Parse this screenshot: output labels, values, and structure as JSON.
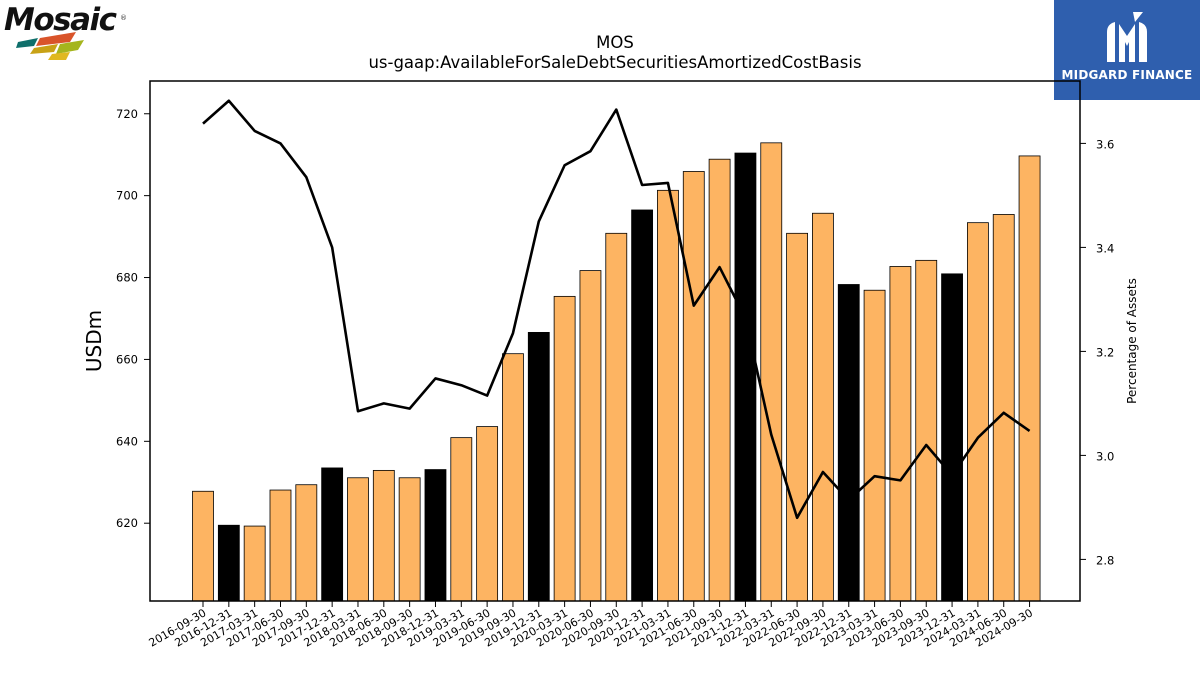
{
  "branding": {
    "company_logo_text": "Mosaic",
    "company_logo_mark": "®",
    "partner_name": "MIDGARD FINANCE",
    "partner_icon": "midgard-logo-icon",
    "partner_bg": "#2f5fae"
  },
  "chart_data": {
    "type": "bar",
    "title": "MOS",
    "subtitle": "us-gaap:AvailableForSaleDebtSecuritiesAmortizedCostBasis",
    "ylabel": "USDm",
    "y2label": "Percentage of Assets",
    "ylim": [
      601,
      728
    ],
    "y2lim": [
      2.72,
      3.72
    ],
    "yticks": [
      620,
      640,
      660,
      680,
      700,
      720
    ],
    "y2ticks": [
      2.8,
      3.0,
      3.2,
      3.4,
      3.6
    ],
    "grid": false,
    "legend": "none",
    "categories": [
      "2016-09-30",
      "2016-12-31",
      "2017-03-31",
      "2017-06-30",
      "2017-09-30",
      "2017-12-31",
      "2018-03-31",
      "2018-06-30",
      "2018-09-30",
      "2018-12-31",
      "2019-03-31",
      "2019-06-30",
      "2019-09-30",
      "2019-12-31",
      "2020-03-31",
      "2020-06-30",
      "2020-09-30",
      "2020-12-31",
      "2021-03-31",
      "2021-06-30",
      "2021-09-30",
      "2021-12-31",
      "2022-03-31",
      "2022-06-30",
      "2022-09-30",
      "2022-12-31",
      "2023-03-31",
      "2023-06-30",
      "2023-09-30",
      "2023-12-31",
      "2024-03-31",
      "2024-06-30",
      "2024-09-30"
    ],
    "series": [
      {
        "kind": "bar",
        "axis": "left",
        "values": [
          627.8,
          619.5,
          619.3,
          628.1,
          629.4,
          633.5,
          631.1,
          632.9,
          631.1,
          633.1,
          640.9,
          643.6,
          661.4,
          666.6,
          675.4,
          681.7,
          690.8,
          696.5,
          701.3,
          705.9,
          708.9,
          710.4,
          712.9,
          690.8,
          695.7,
          678.3,
          676.9,
          682.7,
          684.2,
          680.9,
          693.4,
          695.4,
          709.7
        ],
        "colors_per_bar": [
          "#fdb462",
          "#000000",
          "#fdb462",
          "#fdb462",
          "#fdb462",
          "#000000",
          "#fdb462",
          "#fdb462",
          "#fdb462",
          "#000000",
          "#fdb462",
          "#fdb462",
          "#fdb462",
          "#000000",
          "#fdb462",
          "#fdb462",
          "#fdb462",
          "#000000",
          "#fdb462",
          "#fdb462",
          "#fdb462",
          "#000000",
          "#fdb462",
          "#fdb462",
          "#fdb462",
          "#000000",
          "#fdb462",
          "#fdb462",
          "#fdb462",
          "#000000",
          "#fdb462",
          "#fdb462",
          "#fdb462"
        ]
      },
      {
        "kind": "line",
        "axis": "right",
        "color": "#000000",
        "values": [
          3.638,
          3.682,
          3.624,
          3.6,
          3.535,
          3.4,
          3.085,
          3.1,
          3.09,
          3.148,
          3.135,
          3.115,
          3.235,
          3.45,
          3.558,
          3.585,
          3.665,
          3.52,
          3.524,
          3.288,
          3.362,
          3.264,
          3.04,
          2.88,
          2.968,
          2.914,
          2.96,
          2.952,
          3.02,
          2.962,
          3.034,
          3.082,
          3.047
        ]
      }
    ]
  }
}
